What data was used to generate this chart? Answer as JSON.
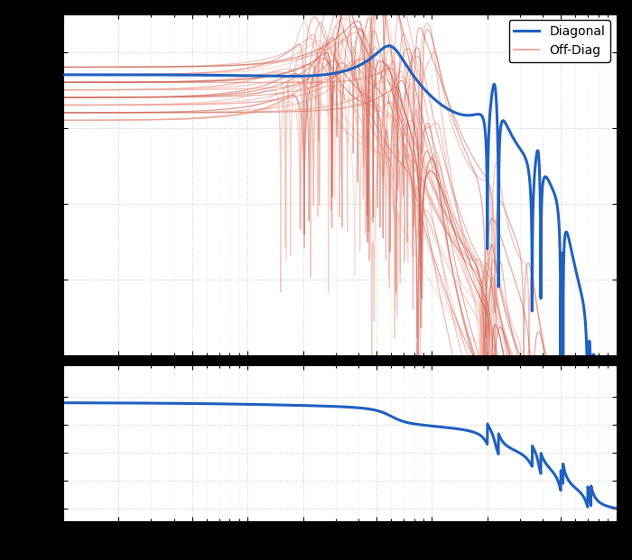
{
  "background_color": "#000000",
  "plot_bg_color": "#ffffff",
  "grid_color": "#c8c8c8",
  "diagonal_color": "#2060c0",
  "offdiag_colors": [
    "#e8a898",
    "#d47060",
    "#e88070",
    "#cc6050",
    "#f0a090",
    "#c85040"
  ],
  "freq_min": 1,
  "freq_max": 1000,
  "diagonal_lw": 2.2,
  "offdiag_lw": 0.9,
  "legend_loc": "upper right",
  "mag_ylim": [
    -80,
    10
  ],
  "phase_ylim": [
    -200,
    50
  ],
  "figsize": [
    7.0,
    6.21
  ],
  "dpi": 100,
  "n_offdiag": 30
}
